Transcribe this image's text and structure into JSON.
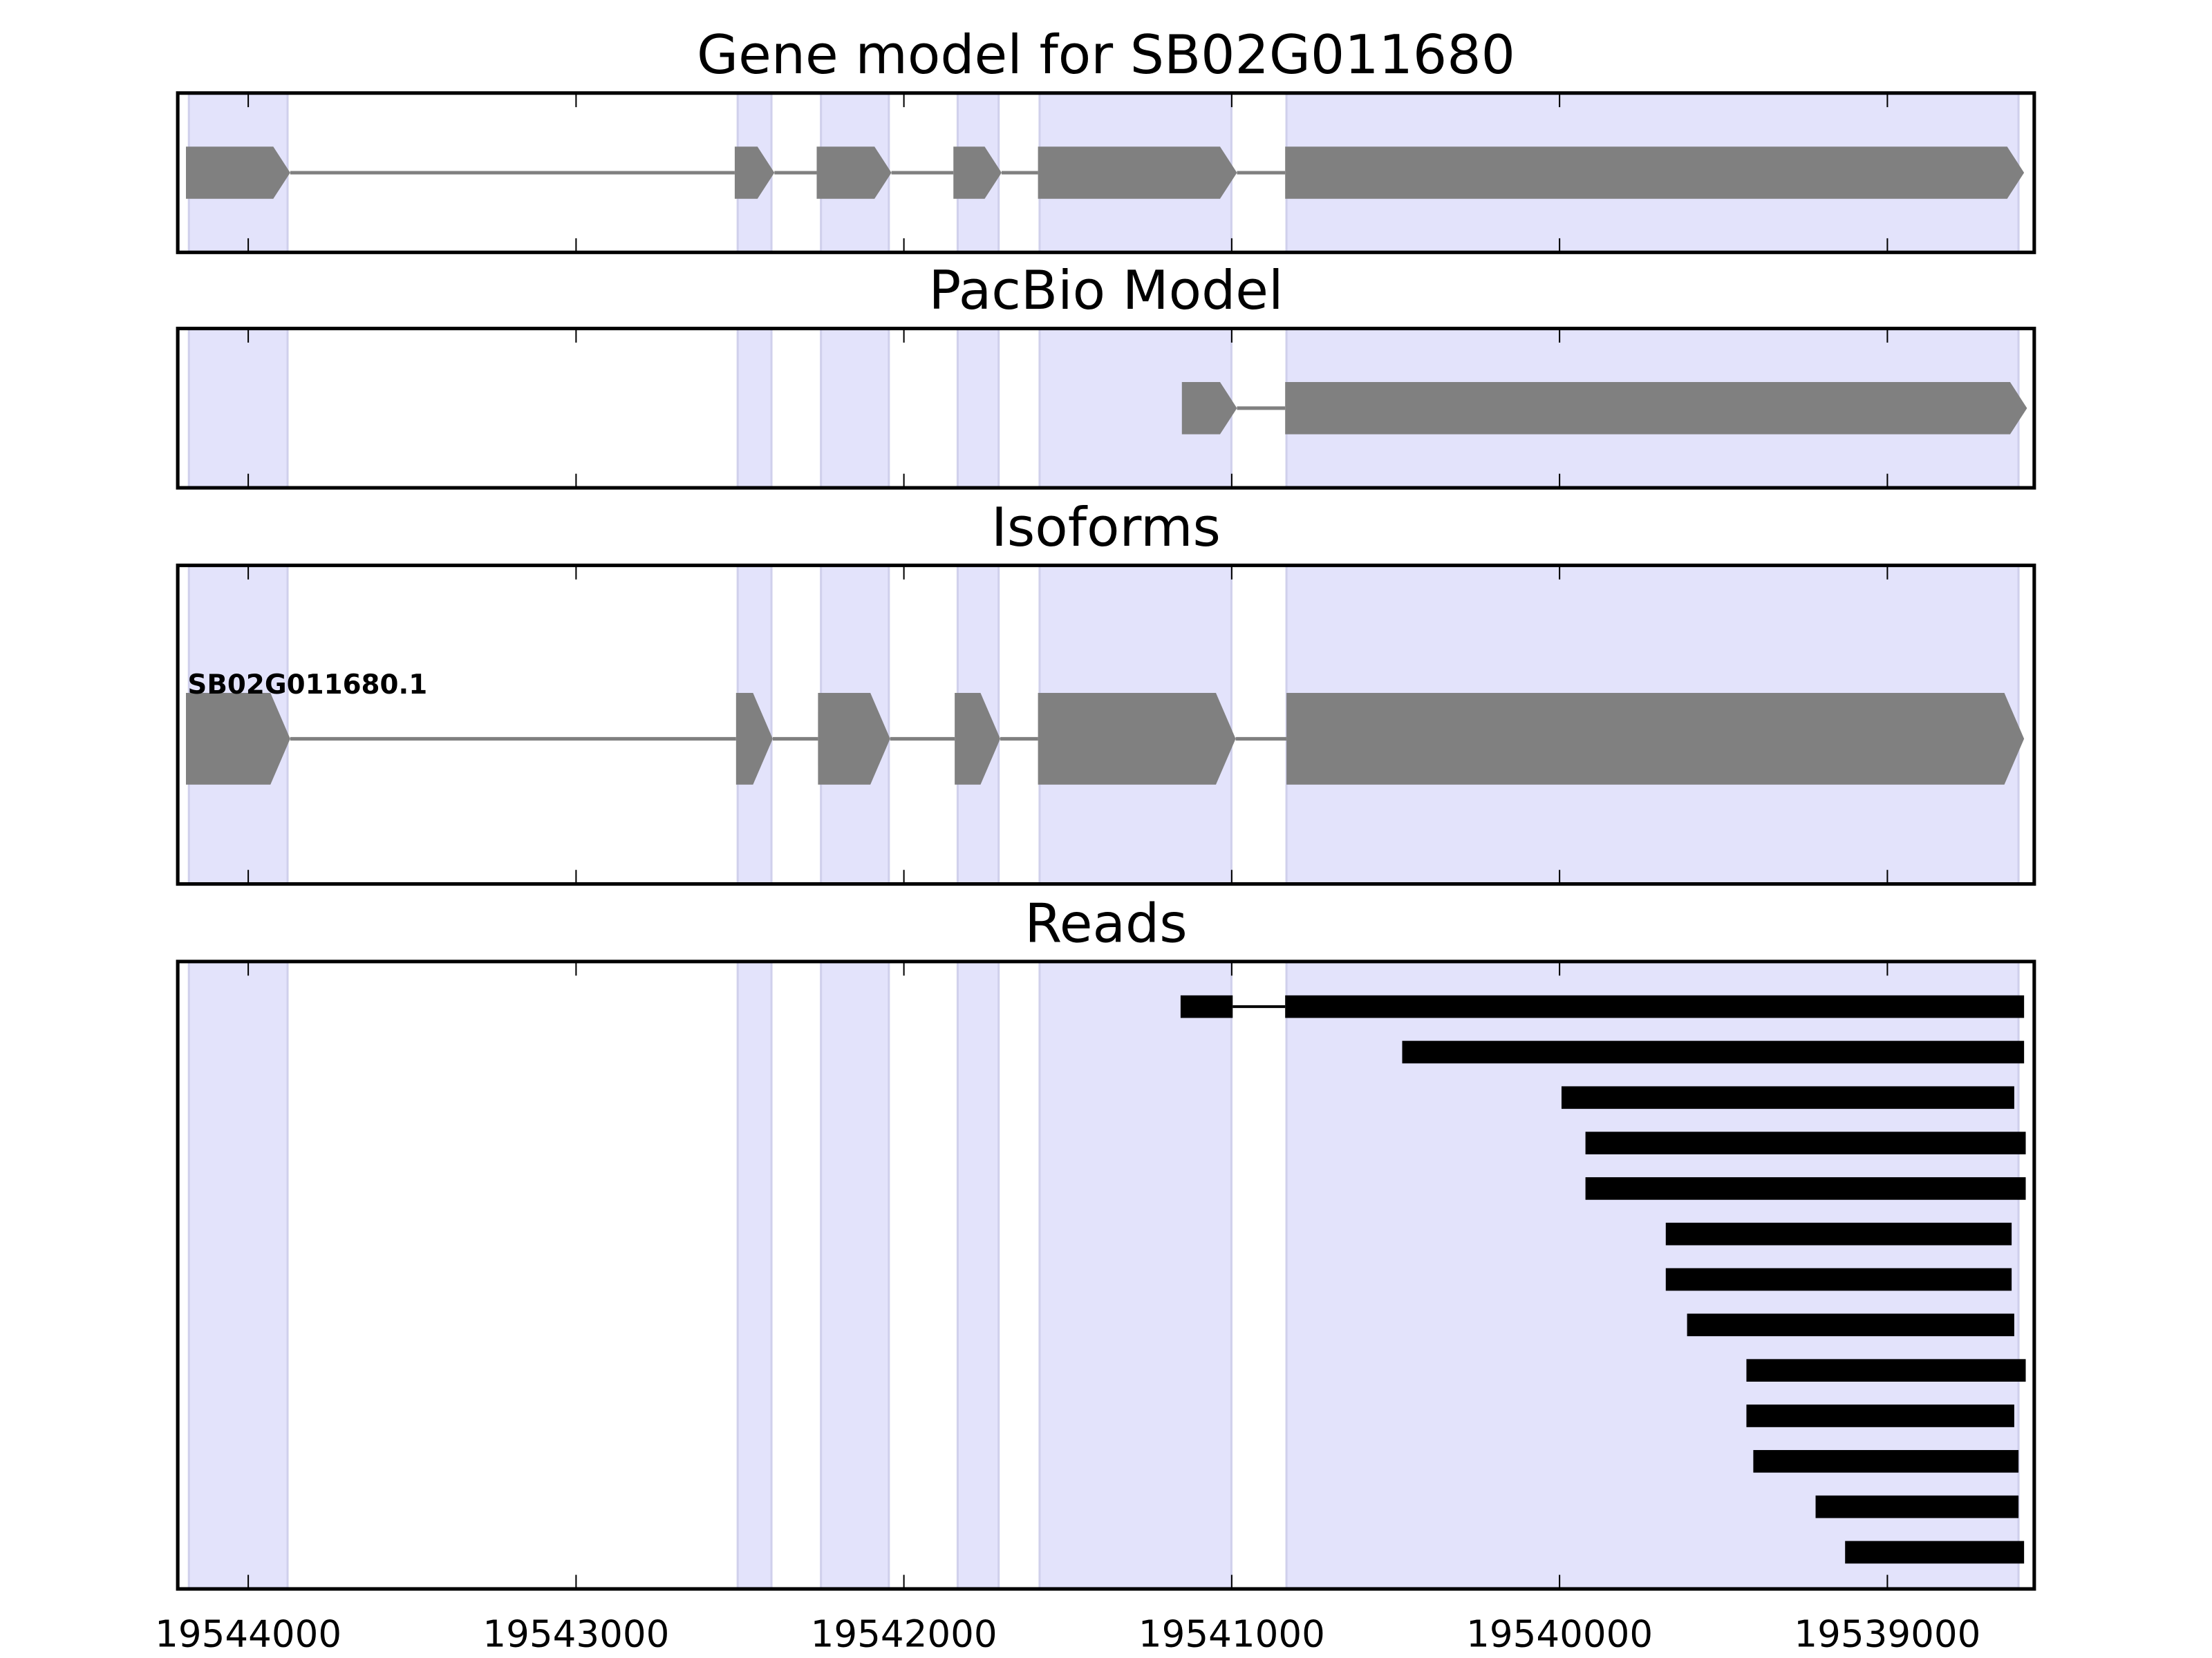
{
  "chart_data": {
    "type": "gene-track",
    "x_range": [
      19544215,
      19538552
    ],
    "x_reversed": true,
    "xticks": [
      19544000,
      19543000,
      19542000,
      19541000,
      19540000,
      19539000
    ],
    "tick_labels": [
      "19544000",
      "19543000",
      "19542000",
      "19541000",
      "19540000",
      "19539000"
    ],
    "shaded_regions": [
      [
        19544181,
        19543880
      ],
      [
        19542507,
        19542404
      ],
      [
        19542253,
        19542046
      ],
      [
        19541836,
        19541711
      ],
      [
        19541586,
        19541001
      ],
      [
        19540833,
        19538600
      ]
    ],
    "colors": {
      "shade": "#e3e3fb",
      "shade_edge": "#d0d0ec",
      "exon": "#808080",
      "read": "#000000"
    },
    "panels": [
      {
        "title": "Gene model for SB02G011680",
        "kind": "gene",
        "exons": [
          [
            19544190,
            19543872
          ],
          [
            19542516,
            19542395
          ],
          [
            19542266,
            19542038
          ],
          [
            19541849,
            19541702
          ],
          [
            19541591,
            19540984
          ],
          [
            19540837,
            19538583
          ]
        ]
      },
      {
        "title": "PacBio Model",
        "kind": "gene",
        "exons": [
          [
            19541152,
            19540984
          ],
          [
            19540837,
            19538574
          ]
        ]
      },
      {
        "title": "Isoforms",
        "kind": "isoform",
        "label": "SB02G011680.1",
        "exons": [
          [
            19544190,
            19543872
          ],
          [
            19542512,
            19542400
          ],
          [
            19542262,
            19542042
          ],
          [
            19541845,
            19541706
          ],
          [
            19541591,
            19540988
          ],
          [
            19540833,
            19538583
          ]
        ]
      },
      {
        "title": "Reads",
        "kind": "reads",
        "reads": [
          [
            [
              19541156,
              19540997
            ],
            [
              19540837,
              19538583
            ]
          ],
          [
            [
              19540480,
              19538583
            ]
          ],
          [
            [
              19539994,
              19538613
            ]
          ],
          [
            [
              19539921,
              19538578
            ]
          ],
          [
            [
              19539921,
              19538578
            ]
          ],
          [
            [
              19539676,
              19538621
            ]
          ],
          [
            [
              19539676,
              19538621
            ]
          ],
          [
            [
              19539611,
              19538613
            ]
          ],
          [
            [
              19539430,
              19538578
            ]
          ],
          [
            [
              19539430,
              19538613
            ]
          ],
          [
            [
              19539409,
              19538600
            ]
          ],
          [
            [
              19539219,
              19538600
            ]
          ],
          [
            [
              19539129,
              19538583
            ]
          ]
        ]
      }
    ]
  }
}
